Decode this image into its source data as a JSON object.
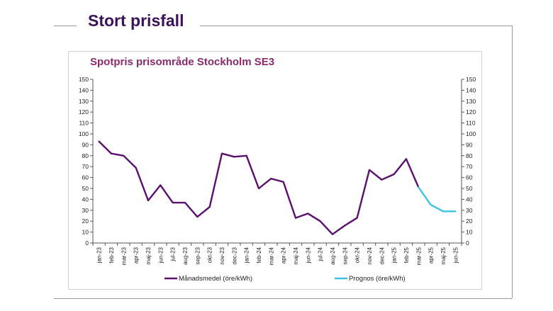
{
  "slide": {
    "title": "Stort prisfall"
  },
  "chart_data": {
    "type": "line",
    "title": "Spotpris prisområde Stockholm SE3",
    "xlabel": "",
    "ylabel": "",
    "ylim": [
      0,
      150
    ],
    "yticks": [
      0,
      10,
      20,
      30,
      40,
      50,
      60,
      70,
      80,
      90,
      100,
      110,
      120,
      130,
      140,
      150
    ],
    "grid": false,
    "secondary_y_axis": true,
    "legend_position": "bottom",
    "categories": [
      "jan-23",
      "feb-23",
      "mar-23",
      "apr-23",
      "maj-23",
      "jun-23",
      "jul-23",
      "aug-23",
      "sep-23",
      "okt-23",
      "nov-23",
      "dec-23",
      "jan-24",
      "feb-24",
      "mar-24",
      "apr-24",
      "maj-24",
      "jun-24",
      "jul-24",
      "aug-24",
      "sep-24",
      "okt-24",
      "nov-24",
      "dec-24",
      "jan-25",
      "feb-25",
      "mar-25",
      "apr-25",
      "maj-25",
      "jun-25"
    ],
    "series": [
      {
        "name": "Månadsmedel (öre/kWh)",
        "color": "#5b0f6e",
        "values": [
          93,
          82,
          80,
          69,
          39,
          53,
          37,
          37,
          24,
          33,
          82,
          79,
          80,
          50,
          59,
          56,
          23,
          27,
          20,
          8,
          16,
          23,
          67,
          58,
          63,
          77,
          51,
          null,
          null,
          null
        ]
      },
      {
        "name": "Prognos (öre/kWh)",
        "color": "#3cc3e0",
        "values": [
          null,
          null,
          null,
          null,
          null,
          null,
          null,
          null,
          null,
          null,
          null,
          null,
          null,
          null,
          null,
          null,
          null,
          null,
          null,
          null,
          null,
          null,
          null,
          null,
          null,
          null,
          51,
          35,
          29,
          29
        ]
      }
    ]
  }
}
